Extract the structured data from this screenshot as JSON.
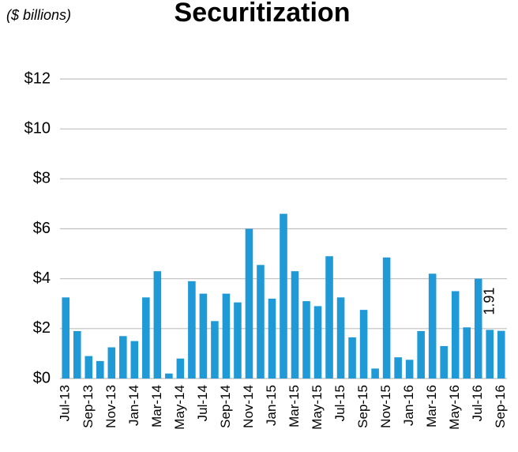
{
  "chart_data": {
    "type": "bar",
    "title": "Securitization",
    "subtitle": "($ billions)",
    "categories": [
      "Jul-13",
      null,
      "Sep-13",
      null,
      "Nov-13",
      null,
      "Jan-14",
      null,
      "Mar-14",
      null,
      "May-14",
      null,
      "Jul-14",
      null,
      "Sep-14",
      null,
      "Nov-14",
      null,
      "Jan-15",
      null,
      "Mar-15",
      null,
      "May-15",
      null,
      "Jul-15",
      null,
      "Sep-15",
      null,
      "Nov-15",
      null,
      "Jan-16",
      null,
      "Mar-16",
      null,
      "May-16",
      null,
      "Jul-16",
      null,
      "Sep-16"
    ],
    "values": [
      3.25,
      1.9,
      0.9,
      0.7,
      1.25,
      1.7,
      1.5,
      3.25,
      4.3,
      0.2,
      0.8,
      3.9,
      3.4,
      2.3,
      3.4,
      3.05,
      6.0,
      4.55,
      3.2,
      6.6,
      4.3,
      3.1,
      2.9,
      4.9,
      3.25,
      1.65,
      2.75,
      0.4,
      4.85,
      0.85,
      0.75,
      1.9,
      4.2,
      1.3,
      3.5,
      2.05,
      4.0,
      1.95,
      1.91
    ],
    "color": "#1f9ad6",
    "ylim": [
      0,
      12
    ],
    "yticks": [
      {
        "value": 0,
        "label": "$0"
      },
      {
        "value": 2,
        "label": "$2"
      },
      {
        "value": 4,
        "label": "$4"
      },
      {
        "value": 6,
        "label": "$6"
      },
      {
        "value": 8,
        "label": "$8"
      },
      {
        "value": 10,
        "label": "$10"
      },
      {
        "value": 12,
        "label": "$12"
      }
    ],
    "grid": true
  }
}
